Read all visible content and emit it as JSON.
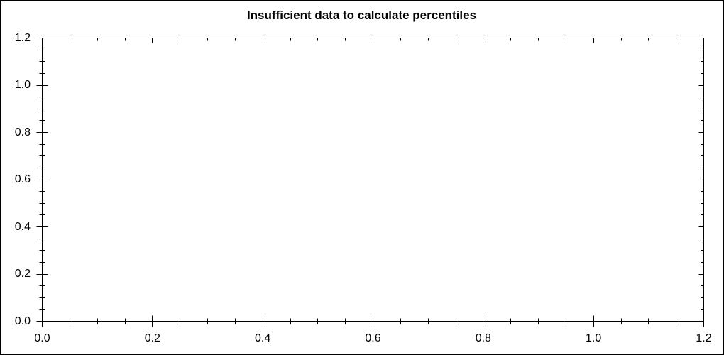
{
  "chart_data": {
    "type": "scatter",
    "title": "Insufficient data to calculate percentiles",
    "series": [],
    "xlabel": "",
    "ylabel": "",
    "xlim": [
      0,
      1.2
    ],
    "ylim": [
      0,
      1.2
    ],
    "x_major_ticks": [
      0.0,
      0.2,
      0.4,
      0.6,
      0.8,
      1.0,
      1.2
    ],
    "y_major_ticks": [
      0.0,
      0.2,
      0.4,
      0.6,
      0.8,
      1.0,
      1.2
    ],
    "x_tick_labels": [
      "0.0",
      "0.2",
      "0.4",
      "0.6",
      "0.8",
      "1.0",
      "1.2"
    ],
    "y_tick_labels": [
      "0.0",
      "0.2",
      "0.4",
      "0.6",
      "0.8",
      "1.0",
      "1.2"
    ],
    "x_minor_step": 0.05,
    "y_minor_step": 0.05,
    "grid": false,
    "legend": false,
    "axis_color": "#000000",
    "text_color": "#000000",
    "background_color": "#ffffff"
  }
}
